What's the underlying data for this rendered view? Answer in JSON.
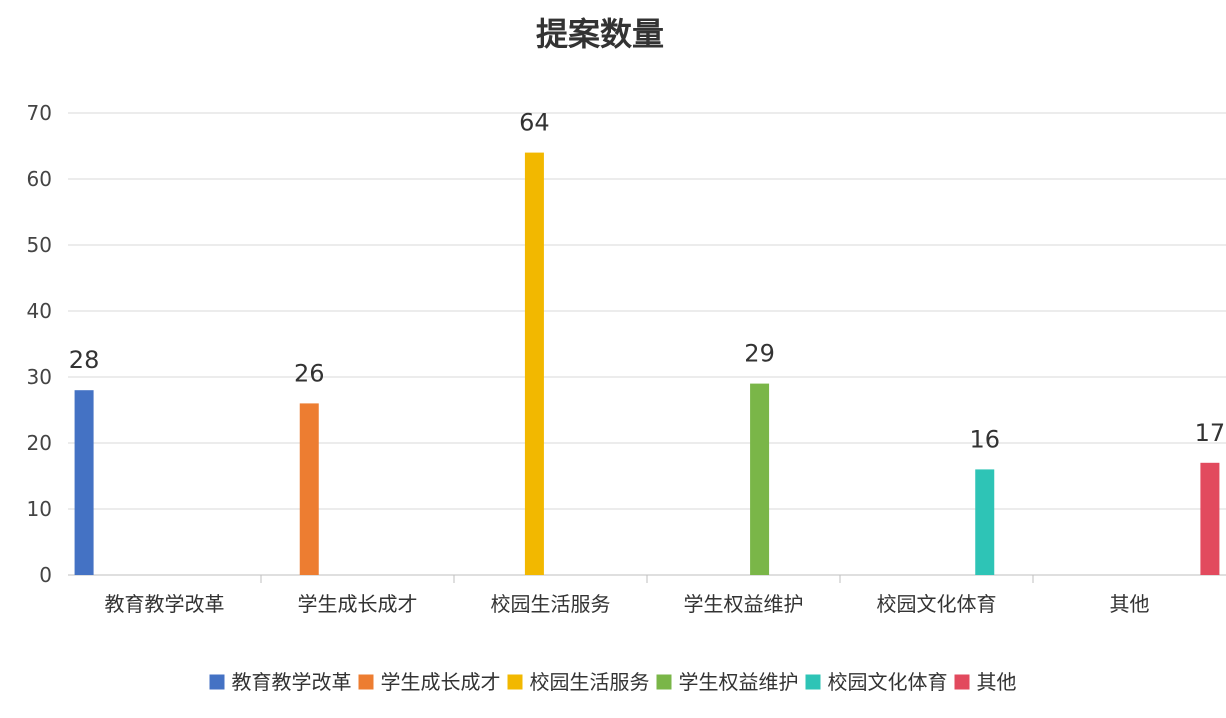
{
  "chart_data": {
    "type": "bar",
    "title": "提案数量",
    "xlabel": "",
    "ylabel": "",
    "ylim": [
      0,
      70
    ],
    "yticks": [
      0,
      10,
      20,
      30,
      40,
      50,
      60,
      70
    ],
    "grid": true,
    "legend_position": "bottom",
    "categories": [
      "教育教学改革",
      "学生成长成才",
      "校园生活服务",
      "学生权益维护",
      "校园文化体育",
      "其他"
    ],
    "series": [
      {
        "name": "教育教学改革",
        "color": "#4472C4",
        "values": [
          28,
          null,
          null,
          null,
          null,
          null
        ]
      },
      {
        "name": "学生成长成才",
        "color": "#ED7D31",
        "values": [
          null,
          26,
          null,
          null,
          null,
          null
        ]
      },
      {
        "name": "校园生活服务",
        "color": "#F2B800",
        "values": [
          null,
          null,
          64,
          null,
          null,
          null
        ]
      },
      {
        "name": "学生权益维护",
        "color": "#7AB648",
        "values": [
          null,
          null,
          null,
          29,
          null,
          null
        ]
      },
      {
        "name": "校园文化体育",
        "color": "#2EC4B6",
        "values": [
          null,
          null,
          null,
          null,
          16,
          null
        ]
      },
      {
        "name": "其他",
        "color": "#E24A5E",
        "values": [
          null,
          null,
          null,
          null,
          null,
          17
        ]
      }
    ],
    "data_labels": [
      "28",
      "26",
      "64",
      "29",
      "16",
      "17"
    ]
  }
}
